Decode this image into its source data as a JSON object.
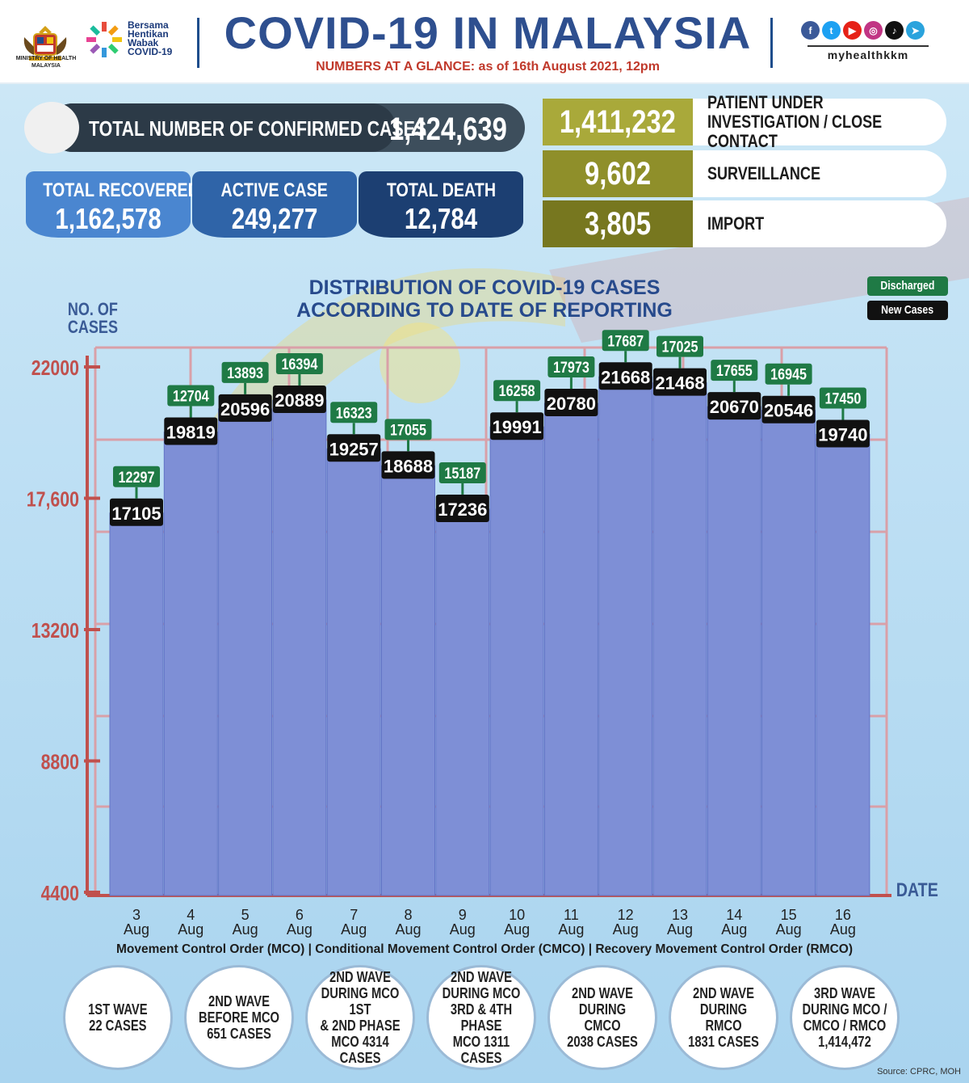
{
  "header": {
    "ministry_label": "MINISTRY OF HEALTH MALAYSIA",
    "campaign_lines": [
      "Bersama",
      "Hentikan",
      "Wabak",
      "COVID-19"
    ],
    "title": "COVID-19 IN MALAYSIA",
    "subtitle_prefix": "NUMBERS AT A GLANCE:",
    "subtitle_date": "as of 16th August 2021, 12pm",
    "social_icons": [
      "facebook-icon",
      "twitter-icon",
      "youtube-icon",
      "instagram-icon",
      "tiktok-icon",
      "telegram-icon"
    ],
    "handle": "myhealthkkm"
  },
  "confirmed": {
    "label": "TOTAL NUMBER OF CONFIRMED CASES",
    "value": "1,424,639"
  },
  "stats": {
    "recovered_label": "TOTAL RECOVERED",
    "recovered_value": "1,162,578",
    "active_label": "ACTIVE CASE",
    "active_value": "249,277",
    "death_label": "TOTAL DEATH",
    "death_value": "12,784"
  },
  "breakdown": [
    {
      "value": "1,411,232",
      "label": "PATIENT UNDER INVESTIGATION / CLOSE CONTACT"
    },
    {
      "value": "9,602",
      "label": "SURVEILLANCE"
    },
    {
      "value": "3,805",
      "label": "IMPORT"
    }
  ],
  "colors": {
    "bar": "#7e8fd6",
    "bar_dark": "#6274c6",
    "discharged": "#1f7a45",
    "new_cases": "#111111",
    "grid": "#d9a0a8",
    "axis": "#c0504d",
    "recovered": "#4a86d0",
    "active": "#2f64a8",
    "death": "#1c3f72",
    "pui": "#a9a93a",
    "surveillance": "#8f8f2a",
    "import": "#77771f"
  },
  "chart_data": {
    "type": "bar",
    "title_line1": "DISTRIBUTION OF COVID-19 CASES",
    "title_line2": "ACCORDING TO DATE OF REPORTING",
    "ylabel_line1": "NO. OF",
    "ylabel_line2": "CASES",
    "xlabel": "DATE",
    "yticks": [
      22000,
      17600,
      13200,
      8800,
      4400
    ],
    "ytick_labels": [
      "22000",
      "17,600",
      "13200",
      "8800",
      "4400"
    ],
    "ylim": [
      4400,
      22000
    ],
    "categories": [
      "3 Aug",
      "4 Aug",
      "5 Aug",
      "6 Aug",
      "7 Aug",
      "8 Aug",
      "9 Aug",
      "10 Aug",
      "11 Aug",
      "12 Aug",
      "13 Aug",
      "14 Aug",
      "15 Aug",
      "16 Aug"
    ],
    "category_day": [
      "3",
      "4",
      "5",
      "6",
      "7",
      "8",
      "9",
      "10",
      "11",
      "12",
      "13",
      "14",
      "15",
      "16"
    ],
    "category_month": [
      "Aug",
      "Aug",
      "Aug",
      "Aug",
      "Aug",
      "Aug",
      "Aug",
      "Aug",
      "Aug",
      "Aug",
      "Aug",
      "Aug",
      "Aug",
      "Aug"
    ],
    "series": [
      {
        "name": "New Cases",
        "values": [
          17105,
          19819,
          20596,
          20889,
          19257,
          18688,
          17236,
          19991,
          20780,
          21668,
          21468,
          20670,
          20546,
          19740
        ]
      },
      {
        "name": "Discharged",
        "values": [
          12297,
          12704,
          13893,
          16394,
          16323,
          17055,
          15187,
          16258,
          17973,
          17687,
          17025,
          17655,
          16945,
          17450
        ]
      }
    ],
    "legend": [
      "Discharged",
      "New Cases"
    ],
    "legend_position": "top-right"
  },
  "footer": {
    "mco_line": "Movement Control Order (MCO) | Conditional Movement Control Order (CMCO) | Recovery Movement Control Order (RMCO)",
    "waves": [
      "1ST WAVE\n22 CASES",
      "2ND WAVE\nBEFORE MCO\n651 CASES",
      "2ND WAVE\nDURING MCO 1ST\n& 2ND PHASE\nMCO 4314\nCASES",
      "2ND WAVE\nDURING MCO\n3RD & 4TH PHASE\nMCO 1311\nCASES",
      "2ND WAVE\nDURING CMCO\n2038 CASES",
      "2ND WAVE\nDURING RMCO\n1831 CASES",
      "3RD WAVE\nDURING MCO /\nCMCO / RMCO\n1,414,472"
    ],
    "source": "Source: CPRC, MOH"
  }
}
